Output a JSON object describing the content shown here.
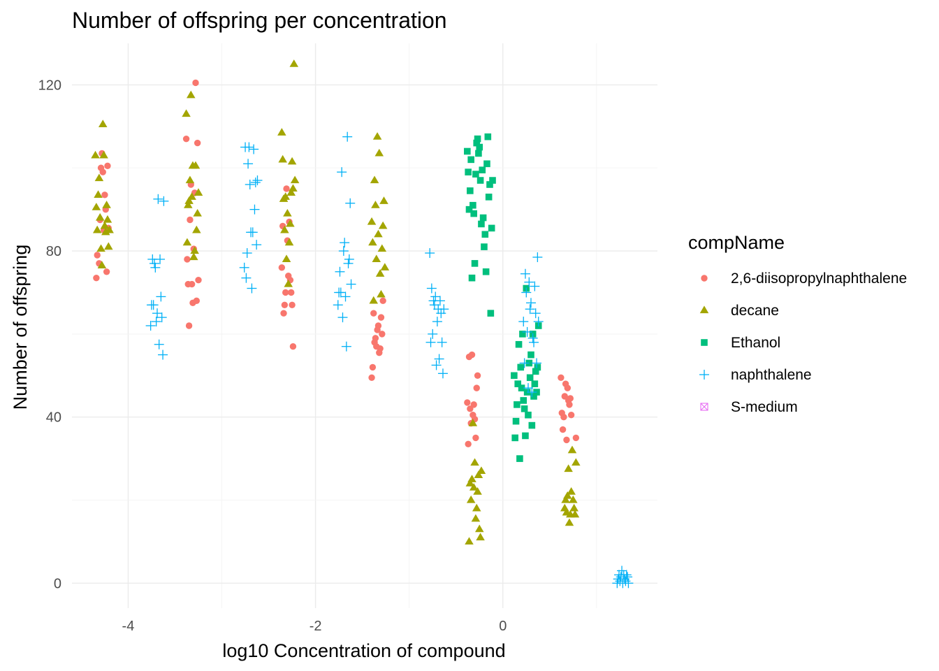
{
  "chart_data": {
    "type": "scatter",
    "title": "Number of offspring per concentration",
    "xlabel": "log10 Concentration of compound",
    "ylabel": "Number of offspring",
    "xlim": [
      -4.6,
      1.65
    ],
    "ylim": [
      -6,
      130
    ],
    "x_ticks": [
      -4,
      -2,
      0
    ],
    "x_tick_labels": [
      "-4",
      "-2",
      "0"
    ],
    "y_ticks": [
      0,
      40,
      80,
      120
    ],
    "y_tick_labels": [
      "0",
      "40",
      "80",
      "120"
    ],
    "grid": true,
    "legend": {
      "title": "compName",
      "position": "right"
    },
    "series": [
      {
        "name": "2,6-diisopropylnaphthalene",
        "color": "#F8766D",
        "marker": "circle",
        "points": [
          [
            -4.34,
            73.5
          ],
          [
            -4.33,
            79
          ],
          [
            -4.31,
            77
          ],
          [
            -4.3,
            87.5
          ],
          [
            -4.29,
            100
          ],
          [
            -4.28,
            103.5
          ],
          [
            -4.27,
            99
          ],
          [
            -4.26,
            85
          ],
          [
            -4.25,
            93.5
          ],
          [
            -4.24,
            90
          ],
          [
            -4.23,
            75
          ],
          [
            -4.22,
            100.5
          ],
          [
            -4.21,
            85.5
          ],
          [
            -3.38,
            107
          ],
          [
            -3.37,
            78
          ],
          [
            -3.36,
            72
          ],
          [
            -3.35,
            62
          ],
          [
            -3.34,
            87.5
          ],
          [
            -3.33,
            96
          ],
          [
            -3.32,
            72
          ],
          [
            -3.31,
            67.5
          ],
          [
            -3.3,
            80.5
          ],
          [
            -3.29,
            94
          ],
          [
            -3.28,
            120.5
          ],
          [
            -3.27,
            68
          ],
          [
            -3.26,
            106
          ],
          [
            -3.25,
            73
          ],
          [
            -2.36,
            76
          ],
          [
            -2.35,
            86
          ],
          [
            -2.34,
            65
          ],
          [
            -2.33,
            67
          ],
          [
            -2.32,
            70
          ],
          [
            -2.31,
            95
          ],
          [
            -2.3,
            82.5
          ],
          [
            -2.29,
            74
          ],
          [
            -2.28,
            87
          ],
          [
            -2.27,
            73
          ],
          [
            -2.26,
            70
          ],
          [
            -2.25,
            67
          ],
          [
            -2.24,
            57
          ],
          [
            -1.4,
            49.5
          ],
          [
            -1.39,
            52
          ],
          [
            -1.38,
            65
          ],
          [
            -1.37,
            58
          ],
          [
            -1.36,
            59
          ],
          [
            -1.35,
            57
          ],
          [
            -1.34,
            61
          ],
          [
            -1.33,
            62
          ],
          [
            -1.32,
            55.5
          ],
          [
            -1.31,
            56.5
          ],
          [
            -1.3,
            64
          ],
          [
            -1.29,
            60
          ],
          [
            -1.28,
            68
          ],
          [
            -0.38,
            43.5
          ],
          [
            -0.37,
            33.5
          ],
          [
            -0.36,
            54.5
          ],
          [
            -0.35,
            42
          ],
          [
            -0.34,
            38.5
          ],
          [
            -0.33,
            55
          ],
          [
            -0.32,
            40.5
          ],
          [
            -0.31,
            43
          ],
          [
            -0.3,
            39.5
          ],
          [
            -0.29,
            35
          ],
          [
            -0.28,
            47
          ],
          [
            -0.27,
            50
          ],
          [
            0.62,
            49.5
          ],
          [
            0.63,
            41
          ],
          [
            0.64,
            37
          ],
          [
            0.65,
            40
          ],
          [
            0.66,
            45
          ],
          [
            0.67,
            48
          ],
          [
            0.68,
            34.5
          ],
          [
            0.69,
            47
          ],
          [
            0.7,
            44
          ],
          [
            0.71,
            43
          ],
          [
            0.72,
            44.5
          ],
          [
            0.73,
            40.5
          ],
          [
            0.78,
            35
          ]
        ]
      },
      {
        "name": "decane",
        "color": "#A3A500",
        "marker": "triangle",
        "points": [
          [
            -4.35,
            103
          ],
          [
            -4.34,
            90.5
          ],
          [
            -4.33,
            85
          ],
          [
            -4.32,
            93.5
          ],
          [
            -4.31,
            97.5
          ],
          [
            -4.3,
            88
          ],
          [
            -4.29,
            80.5
          ],
          [
            -4.28,
            76.5
          ],
          [
            -4.27,
            110.5
          ],
          [
            -4.26,
            103
          ],
          [
            -4.25,
            86
          ],
          [
            -4.24,
            84.5
          ],
          [
            -4.23,
            91
          ],
          [
            -4.22,
            87.5
          ],
          [
            -4.21,
            81
          ],
          [
            -4.2,
            85
          ],
          [
            -3.38,
            113
          ],
          [
            -3.37,
            82
          ],
          [
            -3.36,
            91
          ],
          [
            -3.35,
            92
          ],
          [
            -3.34,
            97
          ],
          [
            -3.33,
            117.5
          ],
          [
            -3.32,
            93
          ],
          [
            -3.31,
            100.5
          ],
          [
            -3.3,
            78.5
          ],
          [
            -3.29,
            80
          ],
          [
            -3.28,
            100.5
          ],
          [
            -3.27,
            85
          ],
          [
            -3.26,
            89
          ],
          [
            -3.25,
            94
          ],
          [
            -2.36,
            108.5
          ],
          [
            -2.35,
            102
          ],
          [
            -2.34,
            92.5
          ],
          [
            -2.33,
            85
          ],
          [
            -2.32,
            93
          ],
          [
            -2.31,
            78
          ],
          [
            -2.3,
            89
          ],
          [
            -2.29,
            72
          ],
          [
            -2.28,
            82
          ],
          [
            -2.27,
            86.5
          ],
          [
            -2.26,
            94
          ],
          [
            -2.25,
            101.5
          ],
          [
            -2.24,
            95
          ],
          [
            -2.23,
            125
          ],
          [
            -2.22,
            97
          ],
          [
            -1.4,
            87
          ],
          [
            -1.39,
            82
          ],
          [
            -1.38,
            68
          ],
          [
            -1.37,
            97
          ],
          [
            -1.36,
            91
          ],
          [
            -1.35,
            78
          ],
          [
            -1.34,
            107.5
          ],
          [
            -1.33,
            84
          ],
          [
            -1.32,
            103.5
          ],
          [
            -1.31,
            74.5
          ],
          [
            -1.3,
            69.5
          ],
          [
            -1.29,
            80.5
          ],
          [
            -1.28,
            86
          ],
          [
            -1.27,
            92
          ],
          [
            -1.26,
            76
          ],
          [
            -0.36,
            10
          ],
          [
            -0.35,
            24
          ],
          [
            -0.34,
            20
          ],
          [
            -0.33,
            25
          ],
          [
            -0.32,
            38.5
          ],
          [
            -0.31,
            23
          ],
          [
            -0.3,
            29
          ],
          [
            -0.29,
            15.5
          ],
          [
            -0.28,
            18
          ],
          [
            -0.27,
            22
          ],
          [
            -0.26,
            26
          ],
          [
            -0.25,
            13
          ],
          [
            -0.24,
            11
          ],
          [
            -0.23,
            27
          ],
          [
            0.66,
            18
          ],
          [
            0.67,
            20
          ],
          [
            0.68,
            17
          ],
          [
            0.69,
            21
          ],
          [
            0.7,
            27.5
          ],
          [
            0.71,
            14.5
          ],
          [
            0.72,
            16.5
          ],
          [
            0.73,
            22
          ],
          [
            0.74,
            32
          ],
          [
            0.75,
            20
          ],
          [
            0.76,
            18
          ],
          [
            0.77,
            16.5
          ],
          [
            0.78,
            29
          ]
        ]
      },
      {
        "name": "Ethanol",
        "color": "#00BF7D",
        "marker": "square",
        "points": [
          [
            -0.38,
            104
          ],
          [
            -0.37,
            99
          ],
          [
            -0.36,
            90
          ],
          [
            -0.35,
            94.5
          ],
          [
            -0.34,
            102
          ],
          [
            -0.33,
            73.5
          ],
          [
            -0.32,
            91
          ],
          [
            -0.31,
            89
          ],
          [
            -0.3,
            77
          ],
          [
            -0.29,
            98.5
          ],
          [
            -0.28,
            106
          ],
          [
            -0.27,
            107
          ],
          [
            -0.26,
            103.5
          ],
          [
            -0.25,
            105
          ],
          [
            -0.24,
            97
          ],
          [
            -0.23,
            86.5
          ],
          [
            -0.22,
            99.5
          ],
          [
            -0.21,
            88
          ],
          [
            -0.2,
            81
          ],
          [
            -0.19,
            84
          ],
          [
            -0.18,
            75
          ],
          [
            -0.17,
            101
          ],
          [
            -0.16,
            107.5
          ],
          [
            -0.15,
            93
          ],
          [
            -0.14,
            96
          ],
          [
            -0.13,
            65
          ],
          [
            -0.12,
            85.5
          ],
          [
            -0.11,
            97
          ],
          [
            0.12,
            50
          ],
          [
            0.13,
            35
          ],
          [
            0.14,
            39
          ],
          [
            0.15,
            43
          ],
          [
            0.16,
            48
          ],
          [
            0.17,
            57.5
          ],
          [
            0.18,
            30
          ],
          [
            0.19,
            52
          ],
          [
            0.2,
            47
          ],
          [
            0.21,
            60
          ],
          [
            0.22,
            44
          ],
          [
            0.23,
            42
          ],
          [
            0.24,
            35.5
          ],
          [
            0.25,
            71
          ],
          [
            0.26,
            46
          ],
          [
            0.27,
            40.5
          ],
          [
            0.28,
            53
          ],
          [
            0.29,
            49.5
          ],
          [
            0.3,
            55
          ],
          [
            0.31,
            38
          ],
          [
            0.32,
            60
          ],
          [
            0.33,
            45
          ],
          [
            0.34,
            48
          ],
          [
            0.35,
            51
          ],
          [
            0.36,
            46
          ],
          [
            0.37,
            52
          ],
          [
            0.38,
            62
          ]
        ]
      },
      {
        "name": "naphthalene",
        "color": "#00B0F6",
        "marker": "plus",
        "points": [
          [
            -3.76,
            62
          ],
          [
            -3.75,
            67
          ],
          [
            -3.74,
            78
          ],
          [
            -3.73,
            67
          ],
          [
            -3.72,
            77
          ],
          [
            -3.71,
            76
          ],
          [
            -3.7,
            63
          ],
          [
            -3.69,
            65
          ],
          [
            -3.68,
            92.5
          ],
          [
            -3.67,
            57.5
          ],
          [
            -3.66,
            78
          ],
          [
            -3.65,
            69
          ],
          [
            -3.64,
            64
          ],
          [
            -3.63,
            55
          ],
          [
            -3.62,
            92
          ],
          [
            -2.76,
            76
          ],
          [
            -2.75,
            105
          ],
          [
            -2.74,
            73.5
          ],
          [
            -2.73,
            79.5
          ],
          [
            -2.72,
            101
          ],
          [
            -2.71,
            105
          ],
          [
            -2.7,
            96
          ],
          [
            -2.69,
            84.5
          ],
          [
            -2.68,
            71
          ],
          [
            -2.67,
            84.5
          ],
          [
            -2.66,
            104.5
          ],
          [
            -2.65,
            90
          ],
          [
            -2.64,
            96.5
          ],
          [
            -2.63,
            81.5
          ],
          [
            -2.62,
            97
          ],
          [
            -1.76,
            67
          ],
          [
            -1.75,
            70
          ],
          [
            -1.74,
            75
          ],
          [
            -1.73,
            70
          ],
          [
            -1.72,
            99
          ],
          [
            -1.71,
            64
          ],
          [
            -1.7,
            80
          ],
          [
            -1.69,
            82
          ],
          [
            -1.68,
            69
          ],
          [
            -1.67,
            57
          ],
          [
            -1.66,
            107.5
          ],
          [
            -1.65,
            77
          ],
          [
            -1.64,
            78
          ],
          [
            -1.63,
            91.5
          ],
          [
            -1.62,
            72
          ],
          [
            -0.78,
            79.5
          ],
          [
            -0.77,
            58
          ],
          [
            -0.76,
            71
          ],
          [
            -0.75,
            60
          ],
          [
            -0.74,
            68
          ],
          [
            -0.73,
            67
          ],
          [
            -0.72,
            69
          ],
          [
            -0.71,
            52.5
          ],
          [
            -0.7,
            63
          ],
          [
            -0.69,
            66
          ],
          [
            -0.68,
            54
          ],
          [
            -0.67,
            68
          ],
          [
            -0.66,
            65
          ],
          [
            -0.65,
            58
          ],
          [
            -0.64,
            50.5
          ],
          [
            -0.63,
            66
          ],
          [
            0.22,
            63
          ],
          [
            0.23,
            53
          ],
          [
            0.24,
            74.5
          ],
          [
            0.25,
            70
          ],
          [
            0.26,
            60.5
          ],
          [
            0.27,
            47
          ],
          [
            0.28,
            72.5
          ],
          [
            0.29,
            66
          ],
          [
            0.3,
            67.5
          ],
          [
            0.31,
            46
          ],
          [
            0.32,
            59
          ],
          [
            0.33,
            58
          ],
          [
            0.34,
            71.5
          ],
          [
            0.35,
            65
          ],
          [
            0.36,
            53
          ],
          [
            0.37,
            78.5
          ],
          [
            0.38,
            63
          ],
          [
            1.22,
            0
          ],
          [
            1.23,
            1
          ],
          [
            1.24,
            2
          ],
          [
            1.25,
            0.5
          ],
          [
            1.26,
            1.5
          ],
          [
            1.27,
            3
          ],
          [
            1.28,
            0
          ],
          [
            1.29,
            2
          ],
          [
            1.3,
            1
          ],
          [
            1.31,
            0.5
          ],
          [
            1.32,
            2
          ],
          [
            1.33,
            1.5
          ],
          [
            1.34,
            0
          ]
        ]
      },
      {
        "name": "S-medium",
        "color": "#E76BF3",
        "marker": "square-cross",
        "points": []
      }
    ]
  }
}
